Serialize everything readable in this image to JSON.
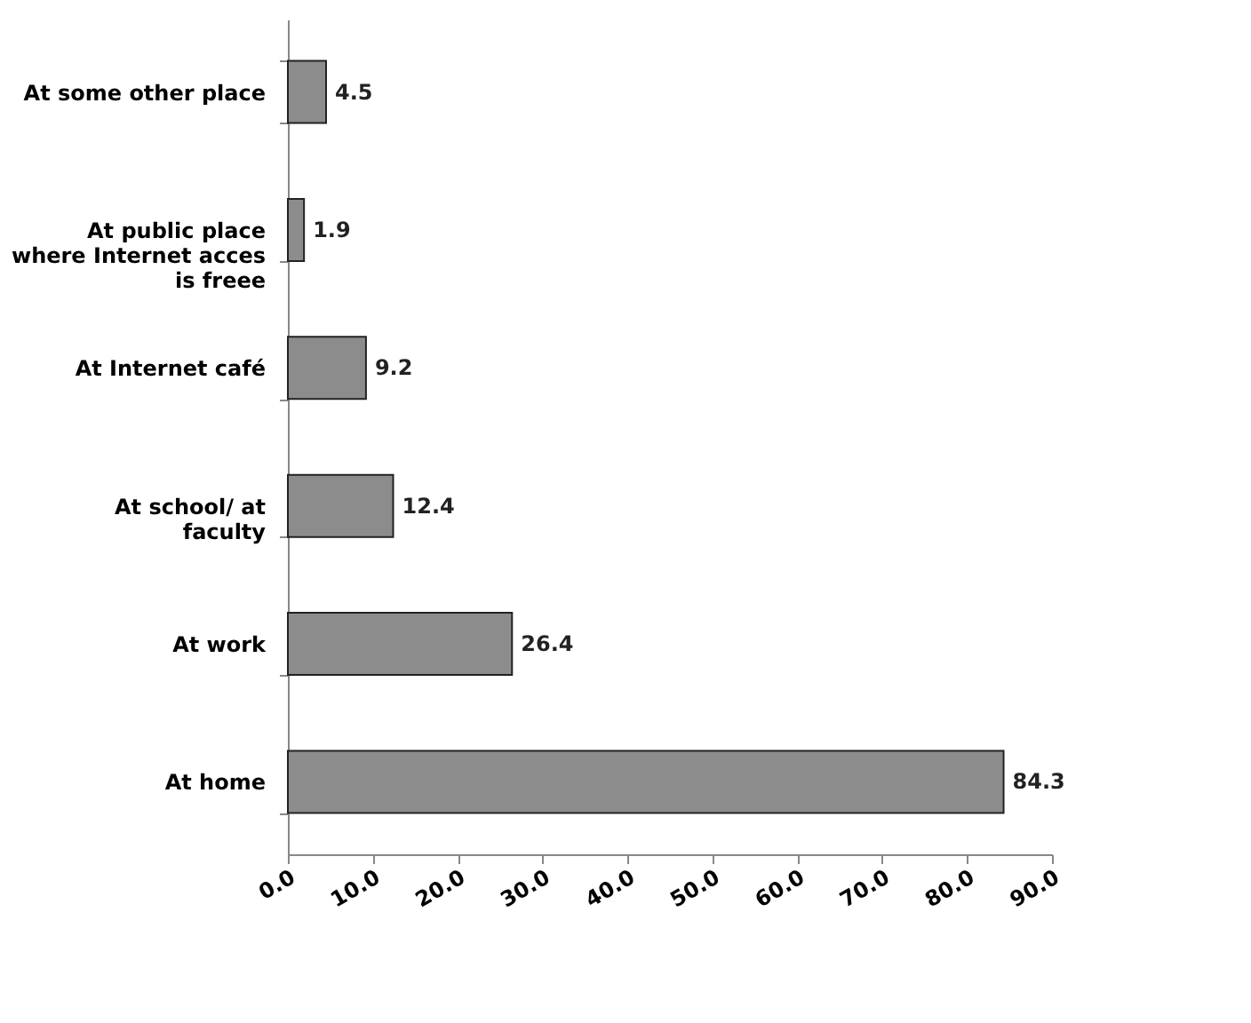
{
  "chart_data": {
    "type": "bar",
    "orientation": "horizontal",
    "categories": [
      "At some other place",
      "At public place where Internet acces is freee",
      "At Internet café",
      "At school/ at faculty",
      "At work",
      "At home"
    ],
    "values": [
      4.5,
      1.9,
      9.2,
      12.4,
      26.4,
      84.3
    ],
    "color": "#8c8c8c",
    "data_labels": true,
    "xlim": [
      0,
      90
    ],
    "xticks": [
      {
        "value": 0,
        "label": "0.0"
      },
      {
        "value": 10,
        "label": "10.0"
      },
      {
        "value": 20,
        "label": "20.0"
      },
      {
        "value": 30,
        "label": "30.0"
      },
      {
        "value": 40,
        "label": "40.0"
      },
      {
        "value": 50,
        "label": "50.0"
      },
      {
        "value": 60,
        "label": "60.0"
      },
      {
        "value": 70,
        "label": "70.0"
      },
      {
        "value": 80,
        "label": "80.0"
      },
      {
        "value": 90,
        "label": "90.0"
      }
    ],
    "grid": false
  }
}
